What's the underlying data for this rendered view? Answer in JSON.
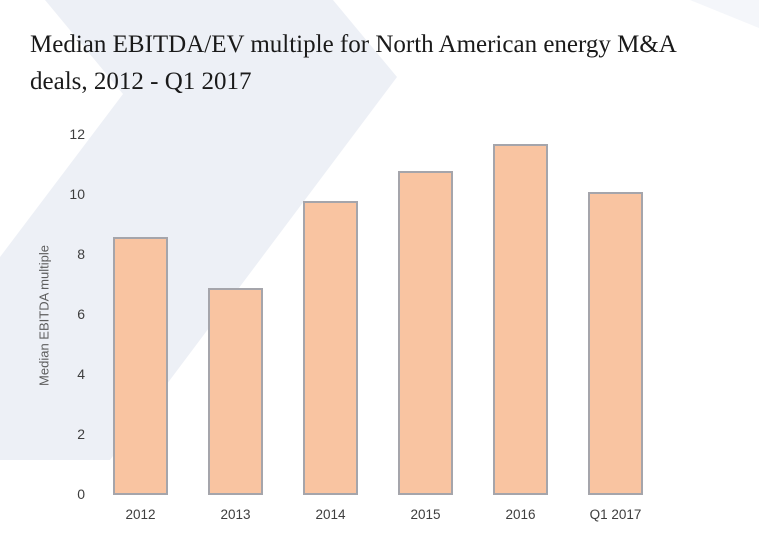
{
  "header": {
    "title": "Median EBITDA/EV multiple for North American energy M&A deals, 2012 - Q1 2017"
  },
  "chart_data": {
    "type": "bar",
    "title": "Median EBITDA/EV multiple for North American energy M&A deals, 2012 - Q1 2017",
    "categories": [
      "2012",
      "2013",
      "2014",
      "2015",
      "2016",
      "Q1 2017"
    ],
    "values": [
      8.6,
      6.9,
      9.8,
      10.8,
      11.7,
      10.1
    ],
    "xlabel": "",
    "ylabel": "Median EBITDA multiple",
    "ylim": [
      0,
      12
    ],
    "yticks": [
      0,
      2,
      4,
      6,
      8,
      10,
      12
    ],
    "grid": false,
    "legend": "none",
    "bar_fill_color": "#f9c4a1",
    "bar_border_color": "#a5a5ab",
    "background_accent_color": "#edf0f6",
    "axis_text_color": "#3e3e3e"
  }
}
